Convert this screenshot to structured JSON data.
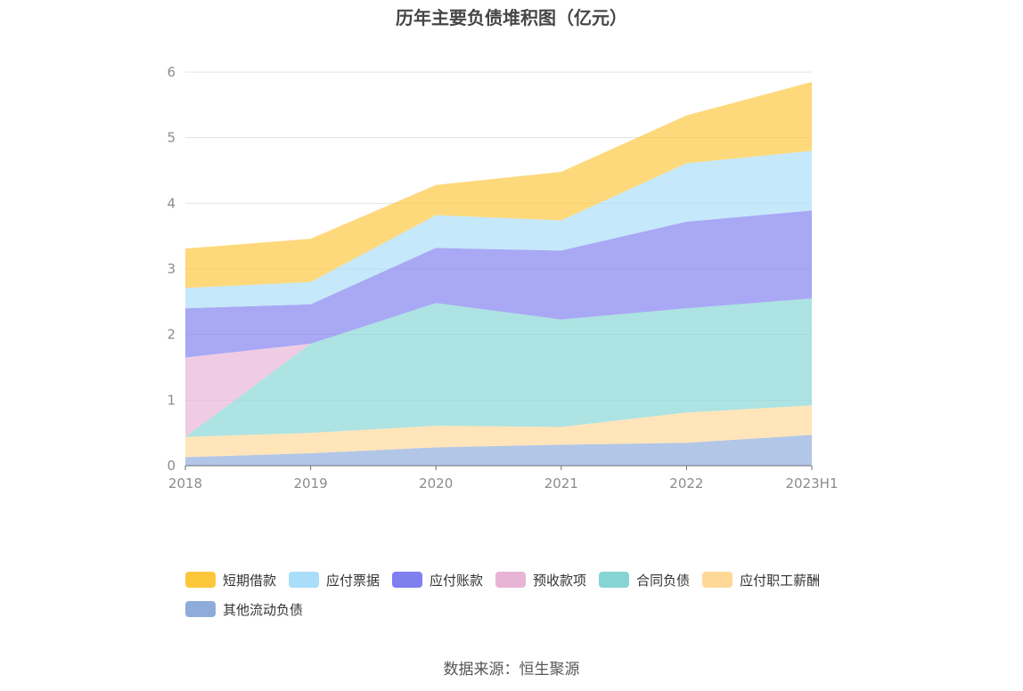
{
  "title": "历年主要负债堆积图（亿元）",
  "source": "数据来源：恒生聚源",
  "chart_data": {
    "type": "area",
    "stacked": true,
    "categories": [
      "2018",
      "2019",
      "2020",
      "2021",
      "2022",
      "2023H1"
    ],
    "ylim": [
      0,
      6
    ],
    "yticks": [
      0,
      1,
      2,
      3,
      4,
      5,
      6
    ],
    "grid": true,
    "legend_position": "bottom",
    "series": [
      {
        "name": "其他流动负债",
        "color": "#8EABDB",
        "values": [
          0.13,
          0.19,
          0.28,
          0.32,
          0.35,
          0.47
        ]
      },
      {
        "name": "应付职工薪酬",
        "color": "#FFD898",
        "values": [
          0.31,
          0.31,
          0.33,
          0.27,
          0.46,
          0.45
        ]
      },
      {
        "name": "合同负债",
        "color": "#86D5D4",
        "values": [
          0.0,
          1.36,
          1.87,
          1.64,
          1.59,
          1.63
        ]
      },
      {
        "name": "预收款项",
        "color": "#E8B4D6",
        "values": [
          1.21,
          0.0,
          0.0,
          0.0,
          0.0,
          0.0
        ]
      },
      {
        "name": "应付账款",
        "color": "#7F7FF0",
        "values": [
          0.75,
          0.6,
          0.84,
          1.05,
          1.32,
          1.34
        ]
      },
      {
        "name": "应付票据",
        "color": "#A9DDF8",
        "values": [
          0.31,
          0.34,
          0.5,
          0.46,
          0.89,
          0.91
        ]
      },
      {
        "name": "短期借款",
        "color": "#FDC73C",
        "values": [
          0.6,
          0.66,
          0.46,
          0.74,
          0.73,
          1.05
        ]
      }
    ]
  },
  "legend": [
    {
      "name": "短期借款",
      "color": "#FDC73C"
    },
    {
      "name": "应付票据",
      "color": "#A9DDF8"
    },
    {
      "name": "应付账款",
      "color": "#7F7FF0"
    },
    {
      "name": "预收款项",
      "color": "#E8B4D6"
    },
    {
      "name": "合同负债",
      "color": "#86D5D4"
    },
    {
      "name": "应付职工薪酬",
      "color": "#FFD898"
    },
    {
      "name": "其他流动负债",
      "color": "#8EABDB"
    }
  ]
}
